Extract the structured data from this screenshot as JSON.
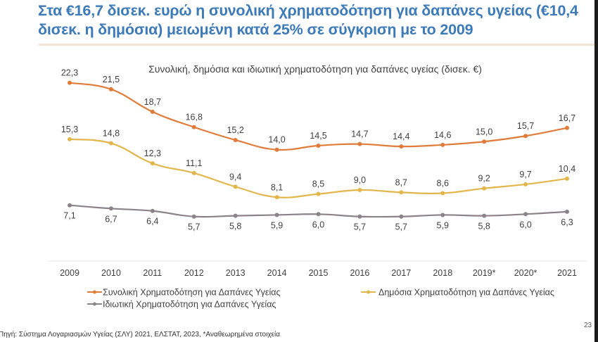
{
  "slide": {
    "title": "Στα €16,7 δισεκ. ευρώ η συνολική χρηματοδότηση για δαπάνες υγείας (€10,4 δισεκ. η δημόσια) μειωμένη κατά 25% σε σύγκριση με το 2009",
    "source": "Πηγή: Σύστημα Λογαριασμών Υγείας (ΣΛΥ) 2021, ΕΛΣΤΑΤ, 2023, *Αναθεωρημένα στοιχεία",
    "page_number": "23"
  },
  "colors": {
    "title": "#3d7ab8",
    "total": "#e07b39",
    "public": "#e2b64a",
    "private": "#8c8289",
    "rule": "#efe4d2"
  },
  "chart_data": {
    "type": "line",
    "title": "Συνολική, δημόσια και ιδιωτική χρηματοδότηση για δαπάνες υγείας (δισεκ. €)",
    "xlabel": "",
    "ylabel": "",
    "ylim": [
      0,
      23
    ],
    "grid": false,
    "legend_position": "bottom",
    "categories": [
      "2009",
      "2010",
      "2011",
      "2012",
      "2013",
      "2014",
      "2015",
      "2016",
      "2017",
      "2018",
      "2019*",
      "2020*",
      "2021"
    ],
    "series": [
      {
        "name": "Συνολική Χρηματοδότηση για Δαπάνες Υγείας",
        "color": "#e07b39",
        "values": [
          22.3,
          21.5,
          18.7,
          16.8,
          15.2,
          14.0,
          14.5,
          14.7,
          14.4,
          14.6,
          15.0,
          15.7,
          16.7
        ],
        "labels": [
          "22,3",
          "21,5",
          "18,7",
          "16,8",
          "15,2",
          "14,0",
          "14,5",
          "14,7",
          "14,4",
          "14,6",
          "15,0",
          "15,7",
          "16,7"
        ],
        "label_position": "above"
      },
      {
        "name": "Δημόσια Χρηματοδότηση για Δαπάνες Υγείας",
        "color": "#e2b64a",
        "values": [
          15.3,
          14.8,
          12.3,
          11.1,
          9.4,
          8.1,
          8.5,
          9.0,
          8.7,
          8.6,
          9.2,
          9.7,
          10.4
        ],
        "labels": [
          "15,3",
          "14,8",
          "12,3",
          "11,1",
          "9,4",
          "8,1",
          "8,5",
          "9,0",
          "8,7",
          "8,6",
          "9,2",
          "9,7",
          "10,4"
        ],
        "label_position": "above"
      },
      {
        "name": "Ιδιωτική Χρηματοδότηση για Δαπάνες Υγείας",
        "color": "#8c8289",
        "values": [
          7.1,
          6.7,
          6.4,
          5.7,
          5.8,
          5.9,
          6.0,
          5.7,
          5.7,
          5.9,
          5.8,
          6.0,
          6.3
        ],
        "labels": [
          "7,1",
          "6,7",
          "6,4",
          "5,7",
          "5,8",
          "5,9",
          "6,0",
          "5,7",
          "5,7",
          "5,9",
          "5,8",
          "6,0",
          "6,3"
        ],
        "label_position": "below"
      }
    ]
  }
}
